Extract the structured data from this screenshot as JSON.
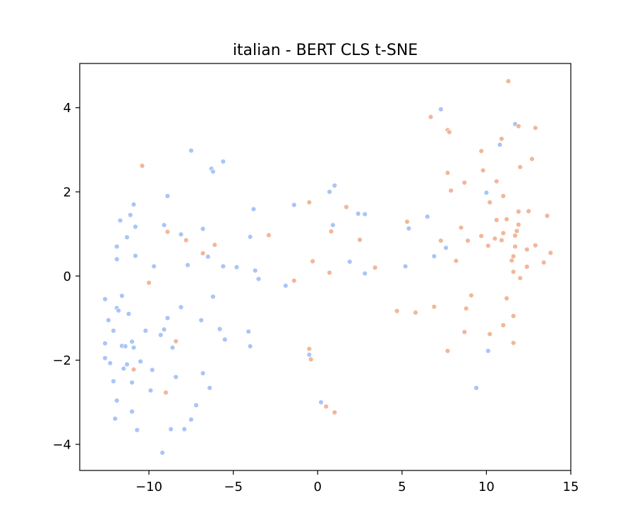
{
  "chart_data": {
    "type": "scatter",
    "title": "italian - BERT CLS t-SNE",
    "xlabel": "",
    "ylabel": "",
    "xlim": [
      -14.1,
      15.0
    ],
    "ylim": [
      -4.62,
      5.05
    ],
    "grid": false,
    "legend": "none",
    "x_ticks": [
      {
        "value": -10,
        "label": "−10"
      },
      {
        "value": -5,
        "label": "−5"
      },
      {
        "value": 0,
        "label": "0"
      },
      {
        "value": 5,
        "label": "5"
      },
      {
        "value": 10,
        "label": "10"
      },
      {
        "value": 15,
        "label": "15"
      }
    ],
    "y_ticks": [
      {
        "value": -4,
        "label": "−4"
      },
      {
        "value": -2,
        "label": "−2"
      },
      {
        "value": 0,
        "label": "0"
      },
      {
        "value": 2,
        "label": "2"
      },
      {
        "value": 4,
        "label": "4"
      }
    ],
    "series": [
      {
        "color": "#a9c5f7",
        "points": [
          [
            -12.6,
            -0.55
          ],
          [
            -12.4,
            -1.05
          ],
          [
            -12.1,
            -1.3
          ],
          [
            -11.9,
            0.7
          ],
          [
            -11.9,
            0.4
          ],
          [
            -11.7,
            1.32
          ],
          [
            -11.3,
            0.92
          ],
          [
            -11.1,
            1.45
          ],
          [
            -10.9,
            1.7
          ],
          [
            -10.8,
            1.17
          ],
          [
            -10.8,
            0.48
          ],
          [
            -11.6,
            -0.47
          ],
          [
            -11.9,
            -0.76
          ],
          [
            -11.8,
            -0.82
          ],
          [
            -11.2,
            -0.9
          ],
          [
            -12.6,
            -1.6
          ],
          [
            -12.6,
            -1.95
          ],
          [
            -12.3,
            -2.07
          ],
          [
            -11.6,
            -1.66
          ],
          [
            -11.4,
            -1.67
          ],
          [
            -11.0,
            -1.56
          ],
          [
            -10.9,
            -1.7
          ],
          [
            -11.5,
            -2.2
          ],
          [
            -11.3,
            -2.1
          ],
          [
            -10.5,
            -2.03
          ],
          [
            -11.0,
            -2.53
          ],
          [
            -12.1,
            -2.5
          ],
          [
            -11.9,
            -2.96
          ],
          [
            -11.0,
            -3.22
          ],
          [
            -12.0,
            -3.39
          ],
          [
            -10.7,
            -3.66
          ],
          [
            -10.2,
            -1.3
          ],
          [
            -9.8,
            -2.23
          ],
          [
            -9.9,
            -2.72
          ],
          [
            -9.7,
            0.23
          ],
          [
            -9.1,
            1.21
          ],
          [
            -8.9,
            1.9
          ],
          [
            -9.3,
            -1.4
          ],
          [
            -9.1,
            -1.27
          ],
          [
            -8.9,
            -1.0
          ],
          [
            -8.6,
            -1.7
          ],
          [
            -8.4,
            -2.4
          ],
          [
            -8.7,
            -3.64
          ],
          [
            -9.2,
            -4.2
          ],
          [
            -7.9,
            -3.64
          ],
          [
            -7.5,
            -3.41
          ],
          [
            -7.2,
            -3.07
          ],
          [
            -8.1,
            -0.74
          ],
          [
            -8.1,
            0.99
          ],
          [
            -7.7,
            0.26
          ],
          [
            -7.5,
            2.98
          ],
          [
            -6.8,
            1.12
          ],
          [
            -6.5,
            0.46
          ],
          [
            -6.3,
            2.55
          ],
          [
            -6.2,
            2.48
          ],
          [
            -5.6,
            2.72
          ],
          [
            -6.2,
            -0.49
          ],
          [
            -5.8,
            -1.26
          ],
          [
            -5.5,
            -1.51
          ],
          [
            -5.6,
            0.23
          ],
          [
            -6.9,
            -1.05
          ],
          [
            -6.8,
            -2.31
          ],
          [
            -6.4,
            -2.66
          ],
          [
            -4.8,
            0.21
          ],
          [
            -4.1,
            -1.32
          ],
          [
            -4.0,
            -1.67
          ],
          [
            -4.0,
            0.93
          ],
          [
            -3.8,
            1.59
          ],
          [
            -3.7,
            0.13
          ],
          [
            -3.5,
            -0.07
          ],
          [
            -1.9,
            -0.23
          ],
          [
            -1.4,
            1.69
          ],
          [
            -0.5,
            -1.87
          ],
          [
            0.2,
            -3.0
          ],
          [
            0.7,
            2.0
          ],
          [
            0.9,
            1.21
          ],
          [
            1.0,
            2.15
          ],
          [
            1.9,
            0.34
          ],
          [
            2.4,
            1.48
          ],
          [
            2.8,
            1.47
          ],
          [
            2.8,
            0.06
          ],
          [
            5.2,
            0.23
          ],
          [
            5.4,
            1.13
          ],
          [
            6.5,
            1.41
          ],
          [
            6.9,
            0.47
          ],
          [
            7.3,
            3.96
          ],
          [
            7.6,
            0.67
          ],
          [
            9.4,
            -2.66
          ],
          [
            10.0,
            1.98
          ],
          [
            10.1,
            -1.78
          ],
          [
            10.8,
            3.12
          ],
          [
            11.7,
            3.61
          ]
        ]
      },
      {
        "color": "#f2b69a",
        "points": [
          [
            -10.4,
            2.62
          ],
          [
            -10.9,
            -2.22
          ],
          [
            -10.0,
            -0.16
          ],
          [
            -9.0,
            -2.77
          ],
          [
            -8.9,
            1.05
          ],
          [
            -8.4,
            -1.55
          ],
          [
            -7.8,
            0.85
          ],
          [
            -6.8,
            0.54
          ],
          [
            -6.1,
            0.74
          ],
          [
            -2.9,
            0.97
          ],
          [
            -1.4,
            -0.11
          ],
          [
            -0.5,
            1.75
          ],
          [
            -0.5,
            -1.73
          ],
          [
            -0.4,
            -1.98
          ],
          [
            -0.3,
            0.35
          ],
          [
            0.5,
            -3.1
          ],
          [
            0.7,
            0.08
          ],
          [
            0.8,
            1.06
          ],
          [
            1.0,
            -3.24
          ],
          [
            1.7,
            1.64
          ],
          [
            2.5,
            0.86
          ],
          [
            3.4,
            0.2
          ],
          [
            4.7,
            -0.83
          ],
          [
            5.3,
            1.29
          ],
          [
            5.8,
            -0.87
          ],
          [
            6.7,
            3.78
          ],
          [
            6.9,
            -0.73
          ],
          [
            7.3,
            0.84
          ],
          [
            7.7,
            3.47
          ],
          [
            7.8,
            3.42
          ],
          [
            7.7,
            2.45
          ],
          [
            7.9,
            2.03
          ],
          [
            7.7,
            -1.78
          ],
          [
            8.2,
            0.36
          ],
          [
            8.5,
            1.15
          ],
          [
            8.7,
            2.22
          ],
          [
            8.7,
            -1.33
          ],
          [
            8.8,
            -0.77
          ],
          [
            8.9,
            0.84
          ],
          [
            9.1,
            -0.46
          ],
          [
            9.7,
            2.97
          ],
          [
            9.8,
            2.51
          ],
          [
            9.7,
            0.95
          ],
          [
            10.2,
            1.75
          ],
          [
            10.1,
            0.72
          ],
          [
            10.2,
            -1.38
          ],
          [
            10.5,
            0.89
          ],
          [
            10.6,
            1.33
          ],
          [
            10.6,
            2.25
          ],
          [
            10.9,
            3.26
          ],
          [
            10.9,
            0.85
          ],
          [
            11.0,
            1.02
          ],
          [
            11.0,
            1.9
          ],
          [
            11.0,
            -1.17
          ],
          [
            11.2,
            1.35
          ],
          [
            11.2,
            -0.53
          ],
          [
            11.3,
            4.63
          ],
          [
            11.5,
            0.37
          ],
          [
            11.6,
            0.47
          ],
          [
            11.6,
            0.1
          ],
          [
            11.6,
            -0.95
          ],
          [
            11.6,
            -1.59
          ],
          [
            11.7,
            0.7
          ],
          [
            11.7,
            0.96
          ],
          [
            11.8,
            1.07
          ],
          [
            11.9,
            1.22
          ],
          [
            11.9,
            1.53
          ],
          [
            11.9,
            3.56
          ],
          [
            12.0,
            2.59
          ],
          [
            12.0,
            -0.05
          ],
          [
            12.4,
            0.22
          ],
          [
            12.4,
            0.63
          ],
          [
            12.5,
            1.54
          ],
          [
            12.7,
            2.78
          ],
          [
            12.9,
            3.52
          ],
          [
            12.9,
            0.73
          ],
          [
            13.4,
            0.32
          ],
          [
            13.6,
            1.43
          ],
          [
            13.8,
            0.55
          ]
        ]
      }
    ]
  }
}
